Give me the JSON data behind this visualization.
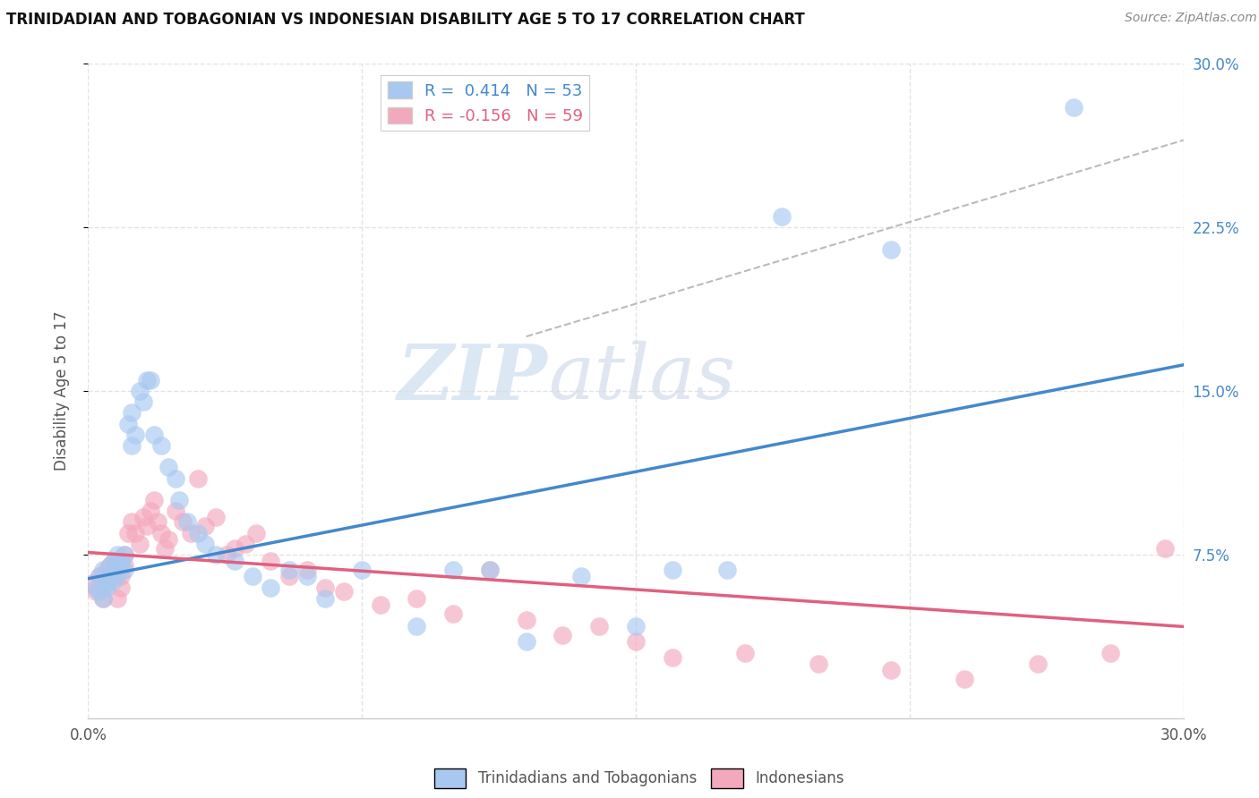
{
  "title": "TRINIDADIAN AND TOBAGONIAN VS INDONESIAN DISABILITY AGE 5 TO 17 CORRELATION CHART",
  "source": "Source: ZipAtlas.com",
  "ylabel": "Disability Age 5 to 17",
  "xlim": [
    0.0,
    0.3
  ],
  "ylim": [
    0.0,
    0.3
  ],
  "blue_R": 0.414,
  "blue_N": 53,
  "pink_R": -0.156,
  "pink_N": 59,
  "blue_color": "#A8C8F0",
  "pink_color": "#F4A8BE",
  "blue_line_color": "#4488CC",
  "pink_line_color": "#E06080",
  "dashed_line_color": "#AAAAAA",
  "background_color": "#FFFFFF",
  "grid_color": "#DDDDDD",
  "legend_label_blue": "Trinidadians and Tobagonians",
  "legend_label_pink": "Indonesians",
  "watermark_zip": "ZIP",
  "watermark_atlas": "atlas",
  "blue_scatter_x": [
    0.002,
    0.003,
    0.003,
    0.004,
    0.004,
    0.005,
    0.005,
    0.006,
    0.006,
    0.007,
    0.007,
    0.007,
    0.008,
    0.008,
    0.009,
    0.009,
    0.01,
    0.01,
    0.011,
    0.012,
    0.012,
    0.013,
    0.014,
    0.015,
    0.016,
    0.017,
    0.018,
    0.02,
    0.022,
    0.024,
    0.025,
    0.027,
    0.03,
    0.032,
    0.035,
    0.04,
    0.045,
    0.05,
    0.055,
    0.06,
    0.065,
    0.075,
    0.09,
    0.1,
    0.11,
    0.12,
    0.135,
    0.15,
    0.16,
    0.175,
    0.19,
    0.22,
    0.27
  ],
  "blue_scatter_y": [
    0.06,
    0.065,
    0.058,
    0.068,
    0.055,
    0.06,
    0.062,
    0.065,
    0.07,
    0.068,
    0.072,
    0.063,
    0.075,
    0.066,
    0.07,
    0.072,
    0.075,
    0.068,
    0.135,
    0.125,
    0.14,
    0.13,
    0.15,
    0.145,
    0.155,
    0.155,
    0.13,
    0.125,
    0.115,
    0.11,
    0.1,
    0.09,
    0.085,
    0.08,
    0.075,
    0.072,
    0.065,
    0.06,
    0.068,
    0.065,
    0.055,
    0.068,
    0.042,
    0.068,
    0.068,
    0.035,
    0.065,
    0.042,
    0.068,
    0.068,
    0.23,
    0.215,
    0.28
  ],
  "pink_scatter_x": [
    0.001,
    0.002,
    0.003,
    0.004,
    0.004,
    0.005,
    0.006,
    0.006,
    0.007,
    0.007,
    0.008,
    0.008,
    0.009,
    0.009,
    0.01,
    0.01,
    0.011,
    0.012,
    0.013,
    0.014,
    0.015,
    0.016,
    0.017,
    0.018,
    0.019,
    0.02,
    0.021,
    0.022,
    0.024,
    0.026,
    0.028,
    0.03,
    0.032,
    0.035,
    0.038,
    0.04,
    0.043,
    0.046,
    0.05,
    0.055,
    0.06,
    0.065,
    0.07,
    0.08,
    0.09,
    0.1,
    0.11,
    0.12,
    0.13,
    0.14,
    0.15,
    0.16,
    0.18,
    0.2,
    0.22,
    0.24,
    0.26,
    0.28,
    0.295
  ],
  "pink_scatter_y": [
    0.062,
    0.058,
    0.065,
    0.06,
    0.055,
    0.068,
    0.07,
    0.065,
    0.072,
    0.068,
    0.07,
    0.055,
    0.065,
    0.06,
    0.075,
    0.07,
    0.085,
    0.09,
    0.085,
    0.08,
    0.092,
    0.088,
    0.095,
    0.1,
    0.09,
    0.085,
    0.078,
    0.082,
    0.095,
    0.09,
    0.085,
    0.11,
    0.088,
    0.092,
    0.075,
    0.078,
    0.08,
    0.085,
    0.072,
    0.065,
    0.068,
    0.06,
    0.058,
    0.052,
    0.055,
    0.048,
    0.068,
    0.045,
    0.038,
    0.042,
    0.035,
    0.028,
    0.03,
    0.025,
    0.022,
    0.018,
    0.025,
    0.03,
    0.078
  ]
}
